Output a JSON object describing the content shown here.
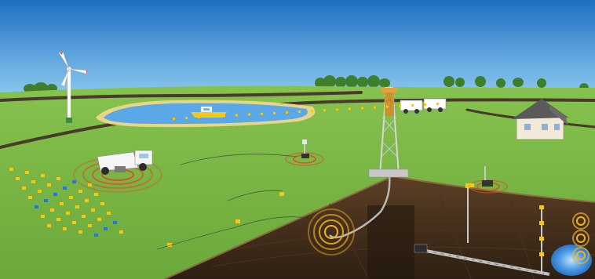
{
  "scene": {
    "colors": {
      "sky_top": "#1f6fc0",
      "sky_bottom": "#7fc0ea",
      "grass": "#77b541",
      "grass_dark": "#5f9a32",
      "road": "#4a3a2c",
      "lake": "#5aa9e6",
      "lake_shore": "#e8d58a",
      "earth_top": "#6b4a2e",
      "earth_dark": "#3b2817",
      "wave": "#f0b323",
      "red_wave": "#d8522b",
      "water_blue": "#3c8fe0",
      "geophone_yellow": "#f2c81b",
      "geophone_blue": "#2a78c8"
    },
    "icons": {
      "wind_turbine": "wind-turbine-icon",
      "boat": "boat-icon",
      "drilling_rig": "drilling-rig-icon",
      "house": "house-icon",
      "vibroseis_truck": "vibroseis-truck-icon",
      "trucks": "truck-icon",
      "tree_line": "tree-icon"
    }
  }
}
